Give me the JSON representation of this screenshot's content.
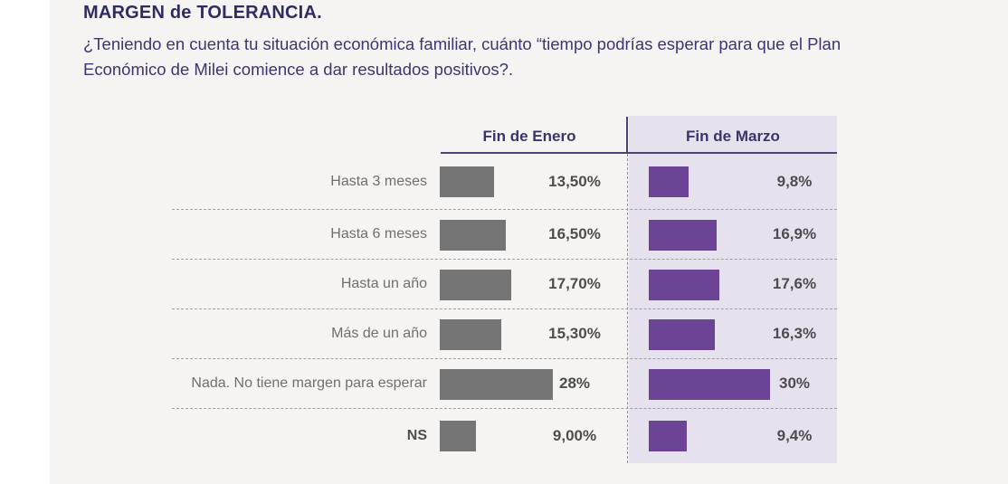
{
  "title": "MARGEN de TOLERANCIA.",
  "question": "¿Teniendo en cuenta tu situación económica familiar, cuánto “tiempo podrías esperar para que el Plan Económico de Milei comience a dar resultados positivos?.",
  "colors": {
    "background": "#f5f4f2",
    "panel_lavender": "#e6e2ed",
    "bar_gray": "#757575",
    "bar_purple": "#6b4496",
    "header_line": "#4b4277",
    "title_text": "#312b64",
    "label_gray": "#6f6f6f",
    "value_text": "#4d4d4d"
  },
  "chart_data": {
    "type": "bar",
    "title": "MARGEN de TOLERANCIA.",
    "subtitle": "¿Teniendo en cuenta tu situación económica familiar, cuánto “tiempo podrías esperar para que el Plan Económico de Milei comience a dar resultados positivos?.",
    "orientation": "horizontal",
    "categories": [
      "Hasta 3 meses",
      "Hasta 6 meses",
      "Hasta un año",
      "Más de un año",
      "Nada. No tiene margen para esperar",
      "NS"
    ],
    "bold_categories": [
      "NS"
    ],
    "series": [
      {
        "name": "Fin de Enero",
        "color": "#757575",
        "values": [
          13.5,
          16.5,
          17.7,
          15.3,
          28,
          9
        ],
        "value_labels": [
          "13,50%",
          "16,50%",
          "17,70%",
          "15,30%",
          "28%",
          "9,00%"
        ]
      },
      {
        "name": "Fin de Marzo",
        "color": "#6b4496",
        "values": [
          9.8,
          16.9,
          17.6,
          16.3,
          30,
          9.4
        ],
        "value_labels": [
          "9,8%",
          "16,9%",
          "17,6%",
          "16,3%",
          "30%",
          "9,4%"
        ]
      }
    ],
    "xlim": [
      0,
      33
    ],
    "grid": "dashed-row-separators",
    "legend_position": "column-headers"
  }
}
